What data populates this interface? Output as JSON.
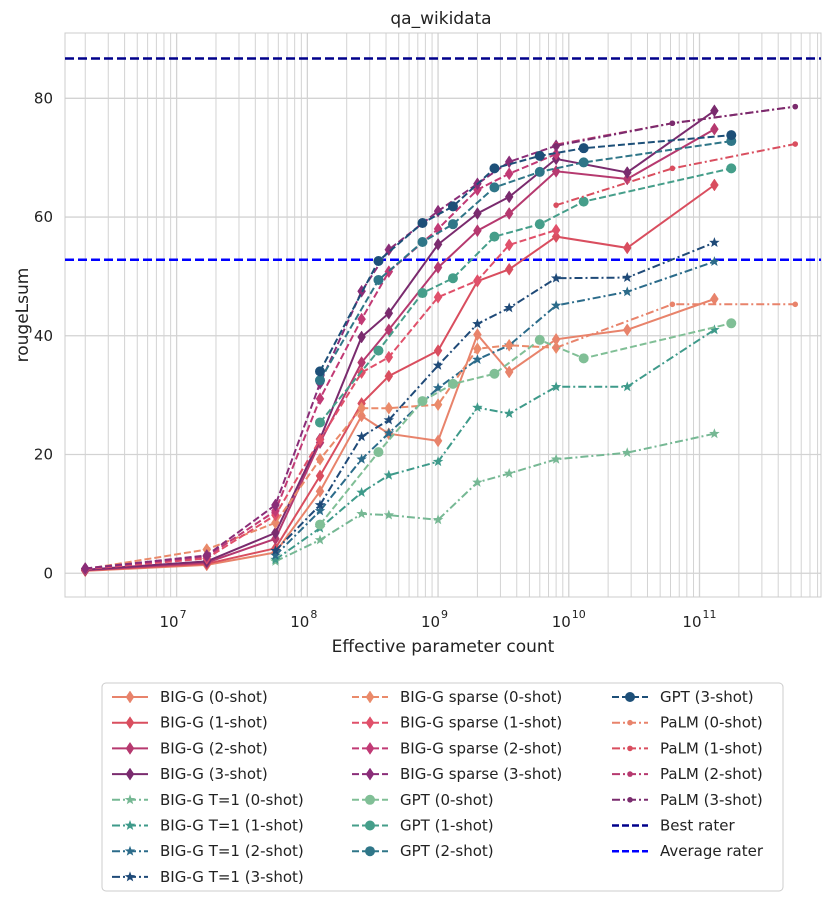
{
  "chart_data": {
    "type": "line",
    "title": "qa_wikidata",
    "xlabel": "Effective parameter count",
    "ylabel": "rougeLsum",
    "xscale": "log",
    "xlim": [
      1400000.0,
      850000000000.0
    ],
    "ylim": [
      -4,
      91
    ],
    "grid": true,
    "legend_position": "below",
    "x_ticks": [
      {
        "value": 10000000.0,
        "base": "10",
        "exp": "7"
      },
      {
        "value": 100000000.0,
        "base": "10",
        "exp": "8"
      },
      {
        "value": 1000000000.0,
        "base": "10",
        "exp": "9"
      },
      {
        "value": 10000000000.0,
        "base": "10",
        "exp": "10"
      },
      {
        "value": 100000000000.0,
        "base": "10",
        "exp": "11"
      }
    ],
    "y_ticks": [
      {
        "value": 0,
        "label": "0"
      },
      {
        "value": 20,
        "label": "20"
      },
      {
        "value": 40,
        "label": "40"
      },
      {
        "value": 60,
        "label": "60"
      },
      {
        "value": 80,
        "label": "80"
      }
    ],
    "series": [
      {
        "name": "BIG-G (0-shot)",
        "color": "#e8836b",
        "dash": "solid",
        "marker": "diamond",
        "x": [
          2000000.0,
          17000000.0,
          57000000.0,
          125000000.0,
          260000000.0,
          420000000.0,
          1000000000.0,
          2000000000.0,
          3500000000.0,
          8000000000.0,
          28000000000.0,
          130000000000.0
        ],
        "y": [
          0.4,
          1.4,
          3.5,
          13.8,
          26.5,
          23.5,
          22.3,
          40.2,
          33.9,
          39.4,
          41.0,
          46.2
        ]
      },
      {
        "name": "BIG-G (1-shot)",
        "color": "#d94e5f",
        "dash": "solid",
        "marker": "diamond",
        "x": [
          2000000.0,
          17000000.0,
          57000000.0,
          125000000.0,
          260000000.0,
          420000000.0,
          1000000000.0,
          2000000000.0,
          3500000000.0,
          8000000000.0,
          28000000000.0,
          130000000000.0
        ],
        "y": [
          0.5,
          1.6,
          4.2,
          16.4,
          28.6,
          33.2,
          37.5,
          49.2,
          51.2,
          56.7,
          54.8,
          65.4
        ]
      },
      {
        "name": "BIG-G (2-shot)",
        "color": "#b6396f",
        "dash": "solid",
        "marker": "diamond",
        "x": [
          2000000.0,
          17000000.0,
          57000000.0,
          125000000.0,
          260000000.0,
          420000000.0,
          1000000000.0,
          2000000000.0,
          3500000000.0,
          8000000000.0,
          28000000000.0,
          130000000000.0
        ],
        "y": [
          0.5,
          1.8,
          5.8,
          22.0,
          35.5,
          41.0,
          51.5,
          57.7,
          60.6,
          67.7,
          66.4,
          74.8
        ]
      },
      {
        "name": "BIG-G (3-shot)",
        "color": "#7a2b6e",
        "dash": "solid",
        "marker": "diamond",
        "x": [
          2000000.0,
          17000000.0,
          57000000.0,
          125000000.0,
          260000000.0,
          420000000.0,
          1000000000.0,
          2000000000.0,
          3500000000.0,
          8000000000.0,
          28000000000.0,
          130000000000.0
        ],
        "y": [
          0.6,
          2.0,
          6.8,
          22.6,
          39.8,
          43.8,
          55.4,
          60.6,
          63.4,
          69.8,
          67.5,
          77.9
        ]
      },
      {
        "name": "BIG-G T=1 (0-shot)",
        "color": "#76b894",
        "dash": "dashdot",
        "marker": "star",
        "x": [
          57000000.0,
          125000000.0,
          260000000.0,
          420000000.0,
          1000000000.0,
          2000000000.0,
          3500000000.0,
          8000000000.0,
          28000000000.0,
          130000000000.0
        ],
        "y": [
          2.0,
          5.6,
          10.0,
          9.8,
          9.0,
          15.3,
          16.8,
          19.2,
          20.3,
          23.5
        ]
      },
      {
        "name": "BIG-G T=1 (1-shot)",
        "color": "#3e9a8a",
        "dash": "dashdot",
        "marker": "star",
        "x": [
          57000000.0,
          125000000.0,
          260000000.0,
          420000000.0,
          1000000000.0,
          2000000000.0,
          3500000000.0,
          8000000000.0,
          28000000000.0,
          130000000000.0
        ],
        "y": [
          2.3,
          7.6,
          13.6,
          16.5,
          18.8,
          27.9,
          26.9,
          31.4,
          31.4,
          41.0
        ]
      },
      {
        "name": "BIG-G T=1 (2-shot)",
        "color": "#2b6b8a",
        "dash": "dashdot",
        "marker": "star",
        "x": [
          57000000.0,
          125000000.0,
          260000000.0,
          420000000.0,
          1000000000.0,
          2000000000.0,
          3500000000.0,
          8000000000.0,
          28000000000.0,
          130000000000.0
        ],
        "y": [
          3.0,
          10.5,
          19.2,
          23.6,
          31.2,
          36.0,
          38.4,
          45.1,
          47.4,
          52.5
        ]
      },
      {
        "name": "BIG-G T=1 (3-shot)",
        "color": "#1f4a78",
        "dash": "dashdot",
        "marker": "star",
        "x": [
          57000000.0,
          125000000.0,
          260000000.0,
          420000000.0,
          1000000000.0,
          2000000000.0,
          3500000000.0,
          8000000000.0,
          28000000000.0,
          130000000000.0
        ],
        "y": [
          3.8,
          11.5,
          23.0,
          25.8,
          35.0,
          42.0,
          44.7,
          49.7,
          49.8,
          55.7
        ]
      },
      {
        "name": "BIG-G sparse (0-shot)",
        "color": "#ea8a6a",
        "dash": "dashed",
        "marker": "diamond",
        "x": [
          2000000.0,
          17000000.0,
          57000000.0,
          125000000.0,
          260000000.0,
          420000000.0,
          1000000000.0,
          2000000000.0,
          3500000000.0,
          8000000000.0
        ],
        "y": [
          0.7,
          4.0,
          8.5,
          19.2,
          27.8,
          27.8,
          28.4,
          37.8,
          38.4,
          38.0
        ]
      },
      {
        "name": "BIG-G sparse (1-shot)",
        "color": "#e0506a",
        "dash": "dashed",
        "marker": "diamond",
        "x": [
          2000000.0,
          17000000.0,
          57000000.0,
          125000000.0,
          260000000.0,
          420000000.0,
          1000000000.0,
          2000000000.0,
          3500000000.0,
          8000000000.0
        ],
        "y": [
          0.7,
          2.5,
          9.8,
          22.5,
          33.8,
          36.4,
          46.5,
          49.3,
          55.3,
          57.8
        ]
      },
      {
        "name": "BIG-G sparse (2-shot)",
        "color": "#c13a75",
        "dash": "dashed",
        "marker": "diamond",
        "x": [
          2000000.0,
          17000000.0,
          57000000.0,
          125000000.0,
          260000000.0,
          420000000.0,
          1000000000.0,
          2000000000.0,
          3500000000.0,
          8000000000.0
        ],
        "y": [
          0.8,
          2.8,
          10.5,
          29.4,
          42.8,
          50.8,
          58.0,
          64.6,
          67.3,
          70.6
        ]
      },
      {
        "name": "BIG-G sparse (3-shot)",
        "color": "#8a2d78",
        "dash": "dashed",
        "marker": "diamond",
        "x": [
          2000000.0,
          17000000.0,
          57000000.0,
          125000000.0,
          260000000.0,
          420000000.0,
          1000000000.0,
          2000000000.0,
          3500000000.0,
          8000000000.0
        ],
        "y": [
          0.8,
          3.0,
          11.5,
          32.0,
          47.5,
          54.5,
          61.0,
          65.6,
          69.3,
          72.0
        ]
      },
      {
        "name": "GPT (0-shot)",
        "color": "#80bf96",
        "dash": "dashed",
        "marker": "circle",
        "x": [
          125000000.0,
          350000000.0,
          760000000.0,
          1300000000.0,
          2700000000.0,
          6000000000.0,
          13000000000.0,
          175000000000.0
        ],
        "y": [
          8.2,
          20.4,
          29.0,
          31.9,
          33.6,
          39.3,
          36.2,
          42.1
        ]
      },
      {
        "name": "GPT (1-shot)",
        "color": "#459e8a",
        "dash": "dashed",
        "marker": "circle",
        "x": [
          125000000.0,
          350000000.0,
          760000000.0,
          1300000000.0,
          2700000000.0,
          6000000000.0,
          13000000000.0,
          175000000000.0
        ],
        "y": [
          25.4,
          37.5,
          47.2,
          49.7,
          56.7,
          58.8,
          62.6,
          68.2
        ]
      },
      {
        "name": "GPT (2-shot)",
        "color": "#2f7688",
        "dash": "dashed",
        "marker": "circle",
        "x": [
          125000000.0,
          350000000.0,
          760000000.0,
          1300000000.0,
          2700000000.0,
          6000000000.0,
          13000000000.0,
          175000000000.0
        ],
        "y": [
          32.5,
          49.4,
          55.8,
          58.8,
          65.0,
          67.6,
          69.2,
          72.8
        ]
      },
      {
        "name": "GPT (3-shot)",
        "color": "#1d4f78",
        "dash": "dashed",
        "marker": "circle",
        "x": [
          125000000.0,
          350000000.0,
          760000000.0,
          1300000000.0,
          2700000000.0,
          6000000000.0,
          13000000000.0,
          175000000000.0
        ],
        "y": [
          34.0,
          52.6,
          59.0,
          61.8,
          68.2,
          70.3,
          71.6,
          73.8
        ]
      },
      {
        "name": "PaLM (0-shot)",
        "color": "#e8836b",
        "dash": "dashdot",
        "marker": "dot",
        "x": [
          8000000000.0,
          62000000000.0,
          540000000000.0
        ],
        "y": [
          38.0,
          45.3,
          45.3
        ]
      },
      {
        "name": "PaLM (1-shot)",
        "color": "#d94e5f",
        "dash": "dashdot",
        "marker": "dot",
        "x": [
          8000000000.0,
          62000000000.0,
          540000000000.0
        ],
        "y": [
          62.0,
          68.2,
          72.3
        ]
      },
      {
        "name": "PaLM (2-shot)",
        "color": "#b6396f",
        "dash": "dashdot",
        "marker": "dot",
        "x": [
          8000000000.0,
          62000000000.0,
          540000000000.0
        ],
        "y": [
          72.2,
          75.8,
          78.6
        ]
      },
      {
        "name": "PaLM (3-shot)",
        "color": "#7a2b6e",
        "dash": "dashdot",
        "marker": "dot",
        "x": [
          8000000000.0,
          62000000000.0,
          540000000000.0
        ],
        "y": [
          72.0,
          75.8,
          78.6
        ]
      }
    ],
    "reference_lines": [
      {
        "name": "Best rater",
        "value": 86.7,
        "color": "#00008b",
        "dash": "dashed"
      },
      {
        "name": "Average rater",
        "value": 52.8,
        "color": "#0000ff",
        "dash": "dashed"
      }
    ],
    "legend": {
      "columns": [
        [
          "BIG-G (0-shot)",
          "BIG-G (1-shot)",
          "BIG-G (2-shot)",
          "BIG-G (3-shot)",
          "BIG-G T=1 (0-shot)",
          "BIG-G T=1 (1-shot)",
          "BIG-G T=1 (2-shot)",
          "BIG-G T=1 (3-shot)"
        ],
        [
          "BIG-G sparse (0-shot)",
          "BIG-G sparse (1-shot)",
          "BIG-G sparse (2-shot)",
          "BIG-G sparse (3-shot)",
          "GPT (0-shot)",
          "GPT (1-shot)",
          "GPT (2-shot)"
        ],
        [
          "GPT (3-shot)",
          "PaLM (0-shot)",
          "PaLM (1-shot)",
          "PaLM (2-shot)",
          "PaLM (3-shot)",
          "Best rater",
          "Average rater"
        ]
      ]
    }
  }
}
